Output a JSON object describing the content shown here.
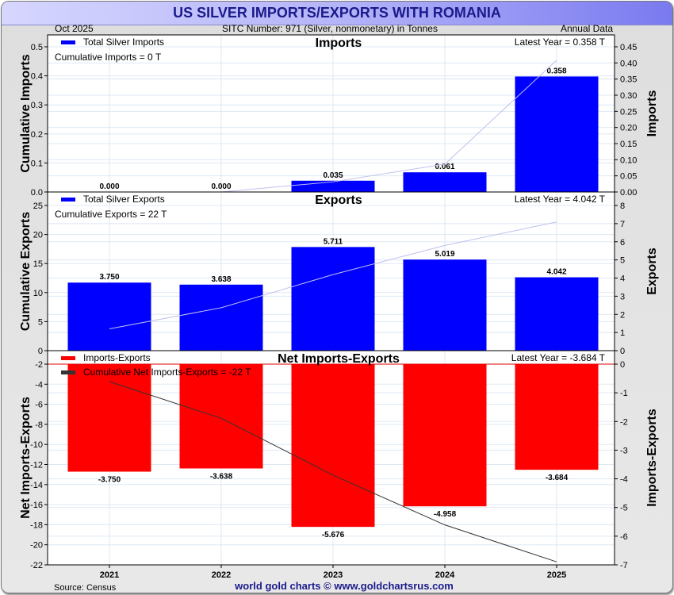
{
  "header": {
    "title": "US SILVER IMPORTS/EXPORTS WITH ROMANIA",
    "date": "Oct  2025",
    "subtitle": "SITC Number: 971 (Silver, nonmonetary) in Tonnes",
    "frequency": "Annual Data"
  },
  "footer": {
    "source": "Source: Census",
    "credit": "world gold charts © www.goldchartsrus.com"
  },
  "colors": {
    "bar_blue": "#0000ff",
    "bar_red": "#ff0000",
    "cumulative_blue_line": "#c0c0f0",
    "cumulative_net_line": "#333333",
    "title_text": "#1a1a8c",
    "grid": "#dde8f4"
  },
  "chart_data": [
    {
      "type": "bar",
      "title": "Imports",
      "categories": [
        "2021",
        "2022",
        "2023",
        "2024",
        "2025"
      ],
      "series": [
        {
          "name": "Total Silver Imports",
          "axis": "right",
          "values": [
            0.0,
            0.0,
            0.035,
            0.061,
            0.358
          ],
          "labels": [
            "0.000",
            "0.000",
            "0.035",
            "0.061",
            "0.358"
          ]
        },
        {
          "name": "Cumulative Imports",
          "axis": "left",
          "type": "line",
          "values": [
            null,
            0.0,
            0.035,
            0.096,
            0.454
          ]
        }
      ],
      "legend": "Total Silver Imports",
      "annotation_left": "Cumulative Imports = 0 T",
      "annotation_right": "Latest Year = 0.358 T",
      "ylabel_left": "Cumulative Imports",
      "ylabel_right": "Imports",
      "ylim_left": [
        0,
        0.5
      ],
      "yticks_left": [
        "0.0",
        "0.1",
        "0.2",
        "0.3",
        "0.4",
        "0.5"
      ],
      "ylim_right": [
        0,
        0.45
      ],
      "yticks_right": [
        "0.00",
        "0.05",
        "0.10",
        "0.15",
        "0.20",
        "0.25",
        "0.30",
        "0.35",
        "0.40",
        "0.45"
      ],
      "grid": true
    },
    {
      "type": "bar",
      "title": "Exports",
      "categories": [
        "2021",
        "2022",
        "2023",
        "2024",
        "2025"
      ],
      "series": [
        {
          "name": "Total Silver Exports",
          "axis": "right",
          "values": [
            3.75,
            3.638,
            5.711,
            5.019,
            4.042
          ],
          "labels": [
            "3.750",
            "3.638",
            "5.711",
            "5.019",
            "4.042"
          ]
        },
        {
          "name": "Cumulative Exports",
          "axis": "left",
          "type": "line",
          "values": [
            3.75,
            7.39,
            13.1,
            18.12,
            22.16
          ]
        }
      ],
      "legend": "Total Silver Exports",
      "annotation_left": "Cumulative Exports = 22 T",
      "annotation_right": "Latest Year = 4.042 T",
      "ylabel_left": "Cumulative Exports",
      "ylabel_right": "Exports",
      "ylim_left": [
        0,
        25
      ],
      "yticks_left": [
        "0",
        "5",
        "10",
        "15",
        "20",
        "25"
      ],
      "ylim_right": [
        0,
        8
      ],
      "yticks_right": [
        "0",
        "1",
        "2",
        "3",
        "4",
        "5",
        "6",
        "7",
        "8"
      ],
      "grid": true
    },
    {
      "type": "bar",
      "title": "Net Imports-Exports",
      "categories": [
        "2021",
        "2022",
        "2023",
        "2024",
        "2025"
      ],
      "series": [
        {
          "name": "Imports-Exports",
          "axis": "right",
          "values": [
            -3.75,
            -3.638,
            -5.676,
            -4.958,
            -3.684
          ],
          "labels": [
            "-3.750",
            "-3.638",
            "-5.676",
            "-4.958",
            "-3.684"
          ]
        },
        {
          "name": "Cumulative Net Imports-Exports",
          "axis": "left",
          "type": "line",
          "values": [
            -3.75,
            -7.39,
            -13.06,
            -18.02,
            -21.7
          ]
        }
      ],
      "legend": [
        "Imports-Exports",
        "Cumulative Net Imports-Exports = -22 T"
      ],
      "annotation_right": "Latest Year = -3.684 T",
      "ylabel_left": "Net Imports-Exports",
      "ylabel_right": "Imports-Exports",
      "ylim_left": [
        -22,
        -2
      ],
      "yticks_left": [
        "-2",
        "-4",
        "-6",
        "-8",
        "-10",
        "-12",
        "-14",
        "-16",
        "-18",
        "-20",
        "-22"
      ],
      "ylim_right": [
        -7,
        0
      ],
      "yticks_right": [
        "0",
        "-1",
        "-2",
        "-3",
        "-4",
        "-5",
        "-6",
        "-7"
      ],
      "xlabel": "",
      "grid": true
    }
  ]
}
